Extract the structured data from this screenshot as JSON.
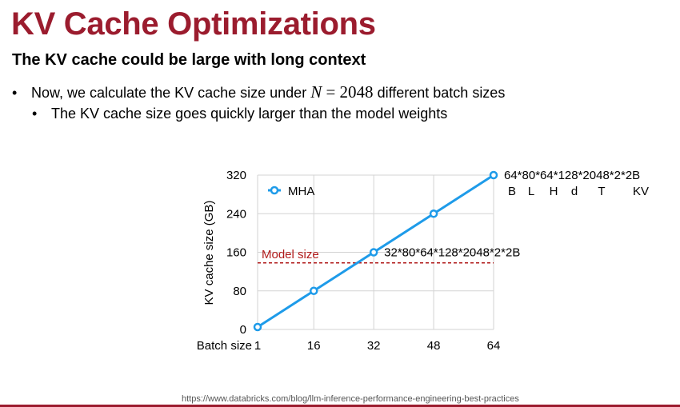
{
  "slide": {
    "title": "KV Cache Optimizations",
    "subtitle": "The KV cache could be large with long context",
    "bullet1": {
      "before": "Now, we calculate the KV cache size under ",
      "math_var": "N",
      "math_eq": " = 2048",
      "after": " different batch sizes"
    },
    "bullet2": "The KV cache size goes quickly larger than the model weights",
    "footer": "https://www.databricks.com/blog/llm-inference-performance-engineering-best-practices"
  },
  "chart_data": {
    "type": "line",
    "x": [
      1,
      16,
      32,
      48,
      64
    ],
    "xticks": [
      "1",
      "16",
      "32",
      "48",
      "64"
    ],
    "xlim": [
      1,
      64
    ],
    "xlabel": "Batch size",
    "ylabel": "KV cache size (GB)",
    "ylim": [
      0,
      320
    ],
    "yticks": [
      0,
      80,
      160,
      240,
      320
    ],
    "series": [
      {
        "name": "MHA",
        "color": "#1e9be9",
        "values": [
          5,
          80,
          160,
          240,
          320
        ]
      }
    ],
    "reference_line": {
      "label": "Model size",
      "value": 138,
      "color": "#b11b1b"
    },
    "annotations": [
      {
        "text": "32*80*64*128*2048*2*2B",
        "x": 32,
        "y": 160
      },
      {
        "text": "64*80*64*128*2048*2*2B",
        "x": 64,
        "y": 320
      }
    ],
    "formula_legend": [
      "B",
      "L",
      "H",
      "d",
      "T",
      "KV"
    ],
    "grid": true,
    "legend": "top-left"
  }
}
